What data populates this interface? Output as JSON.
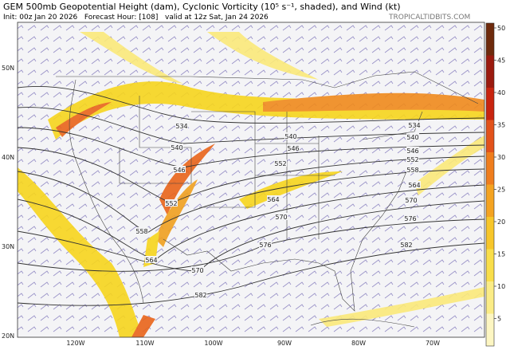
{
  "header": {
    "title": "GEM 500mb Geopotential Height (dam), Cyclonic Vorticity (10⁵ s⁻¹, shaded), and Wind (kt)",
    "subtitle": "Init: 00z Jan 20 2026   Forecast Hour: [108]   valid at 12z Sat, Jan 24 2026",
    "watermark": "TROPICALTIDBITS.COM"
  },
  "map": {
    "lat_labels": [
      "50N",
      "40N",
      "30N",
      "20N"
    ],
    "lon_labels": [
      "120W",
      "110W",
      "100W",
      "90W",
      "80W",
      "70W"
    ],
    "contour_labels": [
      534,
      534,
      540,
      540,
      540,
      546,
      546,
      546,
      552,
      552,
      552,
      558,
      558,
      564,
      564,
      564,
      570,
      570,
      570,
      576,
      576,
      582,
      582
    ]
  },
  "colorbar": {
    "ticks": [
      50,
      45,
      40,
      35,
      30,
      25,
      20,
      15,
      10,
      5
    ]
  }
}
